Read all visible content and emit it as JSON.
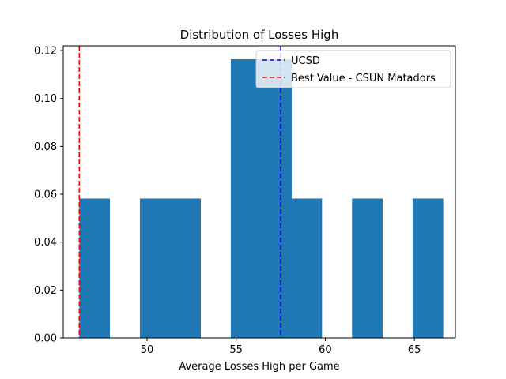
{
  "chart_data": {
    "type": "histogram",
    "title": "Distribution of Losses High",
    "xlabel": "Average Losses High per Game",
    "ylabel": "",
    "xlim": [
      45.3,
      67.3
    ],
    "ylim": [
      0,
      0.122
    ],
    "xticks": [
      50,
      55,
      60,
      65
    ],
    "yticks": [
      0.0,
      0.02,
      0.04,
      0.06,
      0.08,
      0.1,
      0.12
    ],
    "ytick_format": 2,
    "bar_color": "#1f77b4",
    "bins": [
      {
        "x0": 46.2,
        "x1": 47.9,
        "density": 0.0582
      },
      {
        "x0": 47.9,
        "x1": 49.6,
        "density": 0
      },
      {
        "x0": 49.6,
        "x1": 51.3,
        "density": 0.0582
      },
      {
        "x0": 51.3,
        "x1": 53.0,
        "density": 0.0582
      },
      {
        "x0": 53.0,
        "x1": 54.7,
        "density": 0
      },
      {
        "x0": 54.7,
        "x1": 56.4,
        "density": 0.1164
      },
      {
        "x0": 56.4,
        "x1": 58.1,
        "density": 0.1164
      },
      {
        "x0": 58.1,
        "x1": 59.8,
        "density": 0.0582
      },
      {
        "x0": 59.8,
        "x1": 61.5,
        "density": 0
      },
      {
        "x0": 61.5,
        "x1": 63.2,
        "density": 0.0582
      },
      {
        "x0": 63.2,
        "x1": 64.9,
        "density": 0
      },
      {
        "x0": 64.9,
        "x1": 66.6,
        "density": 0.0582
      }
    ],
    "vlines": [
      {
        "name": "UCSD",
        "x": 57.5,
        "color": "#0000ff",
        "style": "dashed"
      },
      {
        "name": "Best Value - CSUN Matadors",
        "x": 46.2,
        "color": "#ff0000",
        "style": "dashed"
      }
    ],
    "legend_placement": "upper-right",
    "grid": false
  }
}
